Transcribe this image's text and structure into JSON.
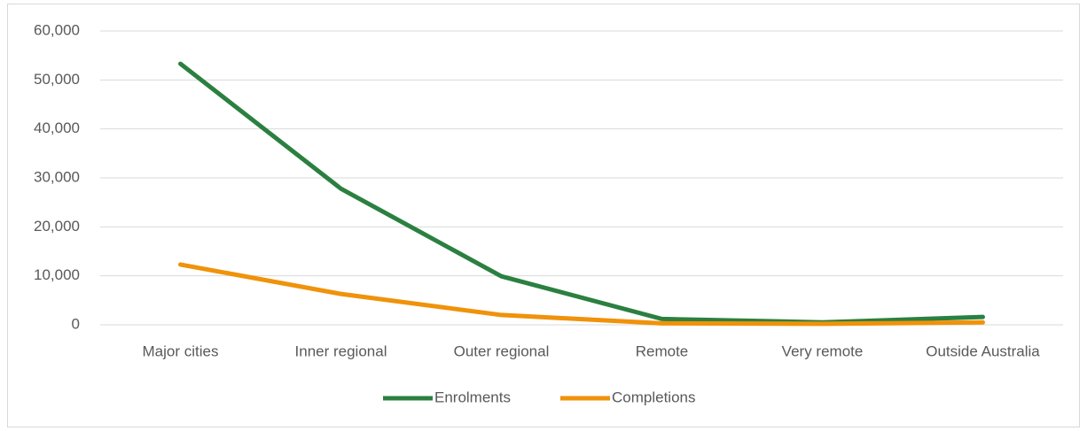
{
  "chart_data": {
    "type": "line",
    "categories": [
      "Major cities",
      "Inner regional",
      "Outer regional",
      "Remote",
      "Very remote",
      "Outside Australia"
    ],
    "series": [
      {
        "name": "Enrolments",
        "color": "#2b8040",
        "values": [
          53300,
          27800,
          9900,
          1200,
          500,
          1600
        ]
      },
      {
        "name": "Completions",
        "color": "#f0920a",
        "values": [
          12300,
          6300,
          2000,
          300,
          200,
          500
        ]
      }
    ],
    "ylim": [
      0,
      60000
    ],
    "yticks": [
      0,
      {
        "value": 10000,
        "label": "10,000"
      },
      {
        "value": 20000,
        "label": "20,000"
      },
      {
        "value": 30000,
        "label": "30,000"
      },
      {
        "value": 40000,
        "label": "40,000"
      },
      {
        "value": 50000,
        "label": "50,000"
      },
      {
        "value": 60000,
        "label": "60,000"
      }
    ],
    "grid": true,
    "legend": "bottom"
  }
}
